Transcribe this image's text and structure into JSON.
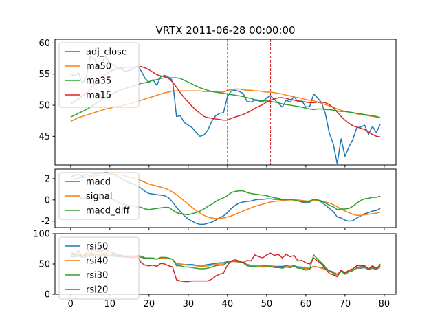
{
  "title": "VRTX 2011-06-28 00:00:00",
  "chart_data": [
    {
      "type": "line",
      "panel": "price",
      "title": "VRTX 2011-06-28 00:00:00",
      "xlim": [
        -4,
        83
      ],
      "ylim": [
        40.4,
        60.6
      ],
      "xticks": [
        0,
        10,
        20,
        30,
        40,
        50,
        60,
        70,
        80
      ],
      "yticks": [
        45,
        50,
        55,
        60
      ],
      "legend": "upper left",
      "vlines": {
        "x": [
          40,
          51
        ],
        "color": "#d62728",
        "style": "dashed"
      },
      "series": [
        {
          "name": "adj_close",
          "color": "#1f77b4",
          "values": [
            55.0,
            54.7,
            55.2,
            53.5,
            54.5,
            57.8,
            57.5,
            56.2,
            57.0,
            57.8,
            56.8,
            56.5,
            56.0,
            55.8,
            55.4,
            55.6,
            55.8,
            56.3,
            55.5,
            54.3,
            53.7,
            54.1,
            53.2,
            54.6,
            54.8,
            54.5,
            54.0,
            48.2,
            48.3,
            47.2,
            46.8,
            46.4,
            45.6,
            45.0,
            45.2,
            46.0,
            47.4,
            48.3,
            48.7,
            48.8,
            51.4,
            52.3,
            52.4,
            52.2,
            51.9,
            50.6,
            50.5,
            50.8,
            50.7,
            50.5,
            51.2,
            51.5,
            50.9,
            50.3,
            49.7,
            50.8,
            50.5,
            51.4,
            50.5,
            50.7,
            49.7,
            49.8,
            51.8,
            51.2,
            50.4,
            48.6,
            45.5,
            43.8,
            40.6,
            44.6,
            41.8,
            43.3,
            44.5,
            46.4,
            46.5,
            46.8,
            45.3,
            46.6,
            45.6,
            47.0
          ]
        },
        {
          "name": "ma50",
          "color": "#ff7f0e",
          "values": [
            47.4,
            47.7,
            48.0,
            48.2,
            48.4,
            48.6,
            48.8,
            49.0,
            49.2,
            49.4,
            49.5,
            49.7,
            49.8,
            49.9,
            50.1,
            50.2,
            50.4,
            50.6,
            50.8,
            51.0,
            51.2,
            51.4,
            51.6,
            51.8,
            52.0,
            52.1,
            52.3,
            52.3,
            52.3,
            52.3,
            52.3,
            52.3,
            52.3,
            52.3,
            52.2,
            52.2,
            52.2,
            52.2,
            52.1,
            52.1,
            52.4,
            52.5,
            52.6,
            52.6,
            52.5,
            52.4,
            52.4,
            52.3,
            52.3,
            52.2,
            52.1,
            52.1,
            52.0,
            51.9,
            51.8,
            51.6,
            51.5,
            51.3,
            51.2,
            51.1,
            50.9,
            50.8,
            50.7,
            50.5,
            50.3,
            50.1,
            49.9,
            49.7,
            49.4,
            49.2,
            49.0,
            48.9,
            48.8,
            48.6,
            48.5,
            48.4,
            48.3,
            48.2,
            48.1,
            48.0
          ]
        },
        {
          "name": "ma35",
          "color": "#2ca02c",
          "values": [
            48.1,
            48.4,
            48.7,
            49.0,
            49.3,
            49.7,
            50.1,
            50.5,
            50.9,
            51.3,
            51.6,
            51.9,
            52.2,
            52.5,
            52.7,
            52.9,
            53.1,
            53.3,
            53.5,
            53.6,
            53.8,
            54.0,
            54.1,
            54.3,
            54.4,
            54.4,
            54.4,
            54.4,
            54.3,
            54.0,
            53.7,
            53.4,
            53.1,
            52.8,
            52.6,
            52.4,
            52.2,
            52.1,
            52.0,
            51.9,
            51.8,
            51.7,
            51.6,
            51.5,
            51.4,
            51.2,
            51.1,
            50.9,
            50.8,
            50.7,
            50.7,
            50.6,
            50.5,
            50.4,
            50.2,
            50.1,
            50.0,
            49.9,
            49.8,
            49.7,
            49.5,
            49.4,
            49.3,
            49.4,
            49.4,
            49.3,
            49.3,
            49.2,
            49.1,
            49.0,
            49.0,
            48.9,
            48.8,
            48.7,
            48.6,
            48.5,
            48.4,
            48.3,
            48.2,
            48.0
          ]
        },
        {
          "name": "ma15",
          "color": "#d62728",
          "values": [
            50.2,
            50.6,
            51.0,
            51.5,
            52.0,
            52.6,
            53.3,
            53.9,
            54.5,
            55.0,
            55.4,
            55.7,
            55.9,
            56.0,
            56.1,
            56.1,
            56.1,
            56.2,
            56.2,
            56.0,
            55.7,
            55.3,
            54.9,
            54.7,
            54.6,
            54.3,
            53.7,
            52.9,
            52.0,
            51.2,
            50.5,
            49.8,
            49.2,
            48.7,
            48.2,
            48.0,
            47.9,
            47.8,
            47.7,
            47.6,
            47.6,
            47.9,
            48.1,
            48.3,
            48.5,
            48.8,
            49.1,
            49.5,
            49.8,
            50.1,
            50.5,
            50.8,
            51.0,
            51.2,
            51.2,
            51.1,
            50.9,
            50.8,
            50.7,
            50.6,
            50.5,
            50.4,
            50.4,
            50.5,
            50.5,
            50.4,
            50.1,
            49.6,
            48.9,
            48.2,
            47.6,
            47.1,
            46.7,
            46.5,
            46.3,
            46.1,
            45.7,
            45.3,
            45.0,
            44.9
          ]
        }
      ]
    },
    {
      "type": "line",
      "panel": "macd",
      "xlim": [
        -4,
        83
      ],
      "ylim": [
        -2.6,
        2.9
      ],
      "xticks": [
        0,
        10,
        20,
        30,
        40,
        50,
        60,
        70,
        80
      ],
      "yticks": [
        -2,
        0,
        2
      ],
      "legend": "upper left",
      "series": [
        {
          "name": "macd",
          "color": "#1f77b4",
          "values": [
            2.2,
            2.3,
            2.4,
            2.2,
            2.4,
            2.3,
            2.5,
            2.5,
            2.5,
            2.6,
            2.55,
            2.4,
            2.2,
            2.0,
            1.8,
            1.6,
            1.5,
            1.3,
            1.1,
            0.8,
            0.6,
            0.55,
            0.5,
            0.45,
            0.4,
            0.2,
            -0.2,
            -0.7,
            -1.1,
            -1.5,
            -1.8,
            -2.0,
            -2.2,
            -2.3,
            -2.3,
            -2.2,
            -2.1,
            -1.9,
            -1.7,
            -1.5,
            -1.2,
            -0.8,
            -0.5,
            -0.3,
            -0.2,
            -0.15,
            -0.1,
            0.0,
            0.05,
            0.05,
            0.1,
            0.1,
            0.05,
            0.05,
            0.0,
            0.0,
            0.05,
            0.0,
            -0.1,
            -0.2,
            -0.3,
            -0.2,
            0.0,
            -0.05,
            -0.2,
            -0.5,
            -0.8,
            -1.1,
            -1.6,
            -1.7,
            -1.9,
            -2.0,
            -1.95,
            -1.7,
            -1.5,
            -1.3,
            -1.2,
            -1.05,
            -1.0,
            -0.8
          ]
        },
        {
          "name": "signal",
          "color": "#ff7f0e",
          "values": [
            1.9,
            2.0,
            2.05,
            2.1,
            2.15,
            2.2,
            2.25,
            2.3,
            2.35,
            2.4,
            2.4,
            2.4,
            2.38,
            2.33,
            2.25,
            2.15,
            2.05,
            1.95,
            1.8,
            1.65,
            1.5,
            1.4,
            1.3,
            1.2,
            1.1,
            0.95,
            0.75,
            0.5,
            0.2,
            -0.1,
            -0.4,
            -0.7,
            -1.0,
            -1.25,
            -1.45,
            -1.6,
            -1.7,
            -1.75,
            -1.75,
            -1.7,
            -1.6,
            -1.5,
            -1.35,
            -1.2,
            -1.05,
            -0.9,
            -0.75,
            -0.6,
            -0.5,
            -0.4,
            -0.3,
            -0.2,
            -0.15,
            -0.1,
            -0.05,
            0.0,
            0.0,
            0.0,
            0.0,
            -0.05,
            -0.1,
            -0.1,
            -0.05,
            -0.05,
            -0.1,
            -0.2,
            -0.3,
            -0.45,
            -0.65,
            -0.85,
            -1.05,
            -1.2,
            -1.35,
            -1.45,
            -1.45,
            -1.4,
            -1.35,
            -1.3,
            -1.25,
            -1.15
          ]
        },
        {
          "name": "macd_diff",
          "color": "#2ca02c",
          "values": [
            0.3,
            0.3,
            0.35,
            0.1,
            0.25,
            0.1,
            0.25,
            0.2,
            0.15,
            0.2,
            0.15,
            0.0,
            -0.2,
            -0.35,
            -0.45,
            -0.55,
            -0.55,
            -0.65,
            -0.7,
            -0.85,
            -0.9,
            -0.85,
            -0.8,
            -0.75,
            -0.7,
            -0.7,
            -0.95,
            -1.2,
            -1.3,
            -1.35,
            -1.4,
            -1.3,
            -1.2,
            -1.05,
            -0.85,
            -0.6,
            -0.4,
            -0.15,
            0.05,
            0.2,
            0.4,
            0.7,
            0.8,
            0.85,
            0.85,
            0.7,
            0.6,
            0.55,
            0.5,
            0.45,
            0.4,
            0.3,
            0.2,
            0.15,
            0.05,
            0.0,
            0.05,
            0.0,
            -0.1,
            -0.15,
            -0.2,
            -0.1,
            0.05,
            0.0,
            -0.1,
            -0.3,
            -0.5,
            -0.65,
            -0.9,
            -0.85,
            -0.85,
            -0.8,
            -0.6,
            -0.3,
            -0.05,
            0.1,
            0.15,
            0.25,
            0.25,
            0.35
          ]
        }
      ]
    },
    {
      "type": "line",
      "panel": "rsi",
      "xlim": [
        -4,
        83
      ],
      "ylim": [
        0,
        100
      ],
      "xticks": [
        0,
        10,
        20,
        30,
        40,
        50,
        60,
        70,
        80
      ],
      "xticklabels": [
        "0",
        "10",
        "20",
        "30",
        "40",
        "50",
        "60",
        "70",
        "80"
      ],
      "yticks": [
        0,
        50,
        100
      ],
      "legend": "upper left",
      "series": [
        {
          "name": "rsi50",
          "color": "#1f77b4",
          "values": [
            62,
            62,
            63,
            61,
            62,
            64,
            64,
            63,
            64,
            64,
            63,
            63,
            62,
            62,
            61,
            61,
            61,
            62,
            61,
            59,
            59,
            59,
            58,
            60,
            60,
            59,
            58,
            50,
            50,
            49,
            49,
            49,
            48,
            48,
            48,
            49,
            50,
            51,
            52,
            52,
            54,
            55,
            55,
            54,
            53,
            49,
            48,
            48,
            47,
            47,
            47,
            47,
            46,
            46,
            46,
            47,
            46,
            47,
            45,
            45,
            43,
            43,
            46,
            45,
            44,
            42,
            39,
            37,
            33,
            39,
            35,
            38,
            40,
            43,
            43,
            44,
            41,
            43,
            41,
            45
          ]
        },
        {
          "name": "rsi40",
          "color": "#ff7f0e",
          "values": [
            63,
            63,
            64,
            62,
            63,
            65,
            65,
            64,
            65,
            65,
            64,
            64,
            63,
            63,
            62,
            62,
            62,
            63,
            62,
            60,
            59,
            59,
            58,
            60,
            60,
            59,
            58,
            51,
            50,
            49,
            48,
            48,
            47,
            46,
            46,
            47,
            48,
            49,
            50,
            50,
            53,
            54,
            54,
            53,
            52,
            48,
            47,
            47,
            47,
            46,
            46,
            47,
            45,
            45,
            44,
            46,
            45,
            46,
            44,
            44,
            42,
            42,
            46,
            45,
            43,
            41,
            37,
            36,
            32,
            39,
            35,
            38,
            40,
            43,
            44,
            45,
            42,
            44,
            42,
            46
          ]
        },
        {
          "name": "rsi30",
          "color": "#2ca02c",
          "values": [
            65,
            65,
            66,
            63,
            65,
            68,
            67,
            66,
            67,
            68,
            66,
            65,
            64,
            64,
            63,
            63,
            63,
            64,
            63,
            60,
            60,
            60,
            58,
            61,
            61,
            60,
            58,
            47,
            47,
            45,
            45,
            44,
            43,
            42,
            42,
            43,
            45,
            47,
            48,
            48,
            53,
            54,
            55,
            53,
            52,
            47,
            46,
            46,
            45,
            45,
            45,
            46,
            44,
            44,
            43,
            45,
            44,
            46,
            43,
            43,
            40,
            41,
            65,
            58,
            52,
            45,
            38,
            35,
            29,
            38,
            33,
            37,
            39,
            44,
            45,
            46,
            42,
            45,
            41,
            50
          ]
        },
        {
          "name": "rsi20",
          "color": "#d62728",
          "values": [
            70,
            66,
            72,
            62,
            68,
            75,
            73,
            70,
            72,
            74,
            70,
            68,
            66,
            64,
            62,
            62,
            60,
            64,
            52,
            48,
            47,
            48,
            46,
            51,
            50,
            47,
            45,
            24,
            22,
            21,
            21,
            22,
            22,
            22,
            22,
            22,
            25,
            30,
            33,
            35,
            48,
            55,
            57,
            55,
            52,
            56,
            55,
            65,
            62,
            60,
            65,
            68,
            64,
            66,
            60,
            66,
            62,
            64,
            55,
            56,
            52,
            50,
            60,
            55,
            50,
            42,
            34,
            32,
            29,
            40,
            35,
            40,
            42,
            47,
            47,
            47,
            42,
            47,
            43,
            47
          ]
        }
      ]
    }
  ]
}
